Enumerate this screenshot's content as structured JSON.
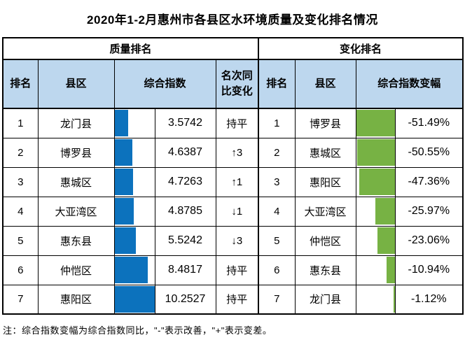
{
  "title": "2020年1-2月惠州市各县区水环境质量及变化排名情况",
  "note": "注：综合指数变幅为综合指数同比，\"-\"表示改善，\"+\"表示变差。",
  "colors": {
    "blue_bar": "#0c72bd",
    "green_bar": "#77b244",
    "header_bg": "#bdd7ee",
    "border": "#000000"
  },
  "quality": {
    "group_label": "质量排名",
    "headers": {
      "rank": "排名",
      "district": "县区",
      "index": "综合指数",
      "change": "名次同比变化"
    },
    "rows": [
      {
        "rank": "1",
        "district": "龙门县",
        "index": "3.5742",
        "change": "持平",
        "bar_pct": 34.9
      },
      {
        "rank": "2",
        "district": "博罗县",
        "index": "4.6387",
        "change": "↑3",
        "bar_pct": 45.2
      },
      {
        "rank": "3",
        "district": "惠城区",
        "index": "4.7263",
        "change": "↑1",
        "bar_pct": 46.1
      },
      {
        "rank": "4",
        "district": "大亚湾区",
        "index": "4.8785",
        "change": "↓1",
        "bar_pct": 47.6
      },
      {
        "rank": "5",
        "district": "惠东县",
        "index": "5.5242",
        "change": "↓3",
        "bar_pct": 53.9
      },
      {
        "rank": "6",
        "district": "仲恺区",
        "index": "8.4817",
        "change": "持平",
        "bar_pct": 82.7
      },
      {
        "rank": "7",
        "district": "惠阳区",
        "index": "10.2527",
        "change": "持平",
        "bar_pct": 100
      }
    ]
  },
  "change": {
    "group_label": "变化排名",
    "headers": {
      "rank": "排名",
      "district": "县区",
      "delta": "综合指数变幅"
    },
    "rows": [
      {
        "rank": "1",
        "district": "博罗县",
        "delta": "-51.49%",
        "bar_pct": 100
      },
      {
        "rank": "2",
        "district": "惠城区",
        "delta": "-50.55%",
        "bar_pct": 98.2
      },
      {
        "rank": "3",
        "district": "惠阳区",
        "delta": "-47.36%",
        "bar_pct": 92.0
      },
      {
        "rank": "4",
        "district": "大亚湾区",
        "delta": "-25.97%",
        "bar_pct": 50.4
      },
      {
        "rank": "5",
        "district": "仲恺区",
        "delta": "-23.06%",
        "bar_pct": 44.8
      },
      {
        "rank": "6",
        "district": "惠东县",
        "delta": "-10.94%",
        "bar_pct": 21.2
      },
      {
        "rank": "7",
        "district": "龙门县",
        "delta": "-1.12%",
        "bar_pct": 2.2
      }
    ]
  },
  "chart_data": {
    "type": "table",
    "title": "2020年1-2月惠州市各县区水环境质量及变化排名情况",
    "tables": [
      {
        "name": "质量排名",
        "columns": [
          "排名",
          "县区",
          "综合指数",
          "名次同比变化"
        ],
        "rows": [
          [
            1,
            "龙门县",
            3.5742,
            "持平"
          ],
          [
            2,
            "博罗县",
            4.6387,
            "↑3"
          ],
          [
            3,
            "惠城区",
            4.7263,
            "↑1"
          ],
          [
            4,
            "大亚湾区",
            4.8785,
            "↓1"
          ],
          [
            5,
            "惠东县",
            5.5242,
            "↓3"
          ],
          [
            6,
            "仲恺区",
            8.4817,
            "持平"
          ],
          [
            7,
            "惠阳区",
            10.2527,
            "持平"
          ]
        ],
        "bar_column": "综合指数",
        "bar_color": "#0c72bd",
        "bar_anchor": "left",
        "bar_scale_max": 10.2527
      },
      {
        "name": "变化排名",
        "columns": [
          "排名",
          "县区",
          "综合指数变幅"
        ],
        "rows": [
          [
            1,
            "博罗县",
            -51.49
          ],
          [
            2,
            "惠城区",
            -50.55
          ],
          [
            3,
            "惠阳区",
            -47.36
          ],
          [
            4,
            "大亚湾区",
            -25.97
          ],
          [
            5,
            "仲恺区",
            -23.06
          ],
          [
            6,
            "惠东县",
            -10.94
          ],
          [
            7,
            "龙门县",
            -1.12
          ]
        ],
        "bar_column": "综合指数变幅",
        "bar_color": "#77b244",
        "bar_anchor": "right",
        "bar_scale_max": 51.49
      }
    ],
    "note": "注：综合指数变幅为综合指数同比，\"-\"表示改善，\"+\"表示变差。"
  }
}
